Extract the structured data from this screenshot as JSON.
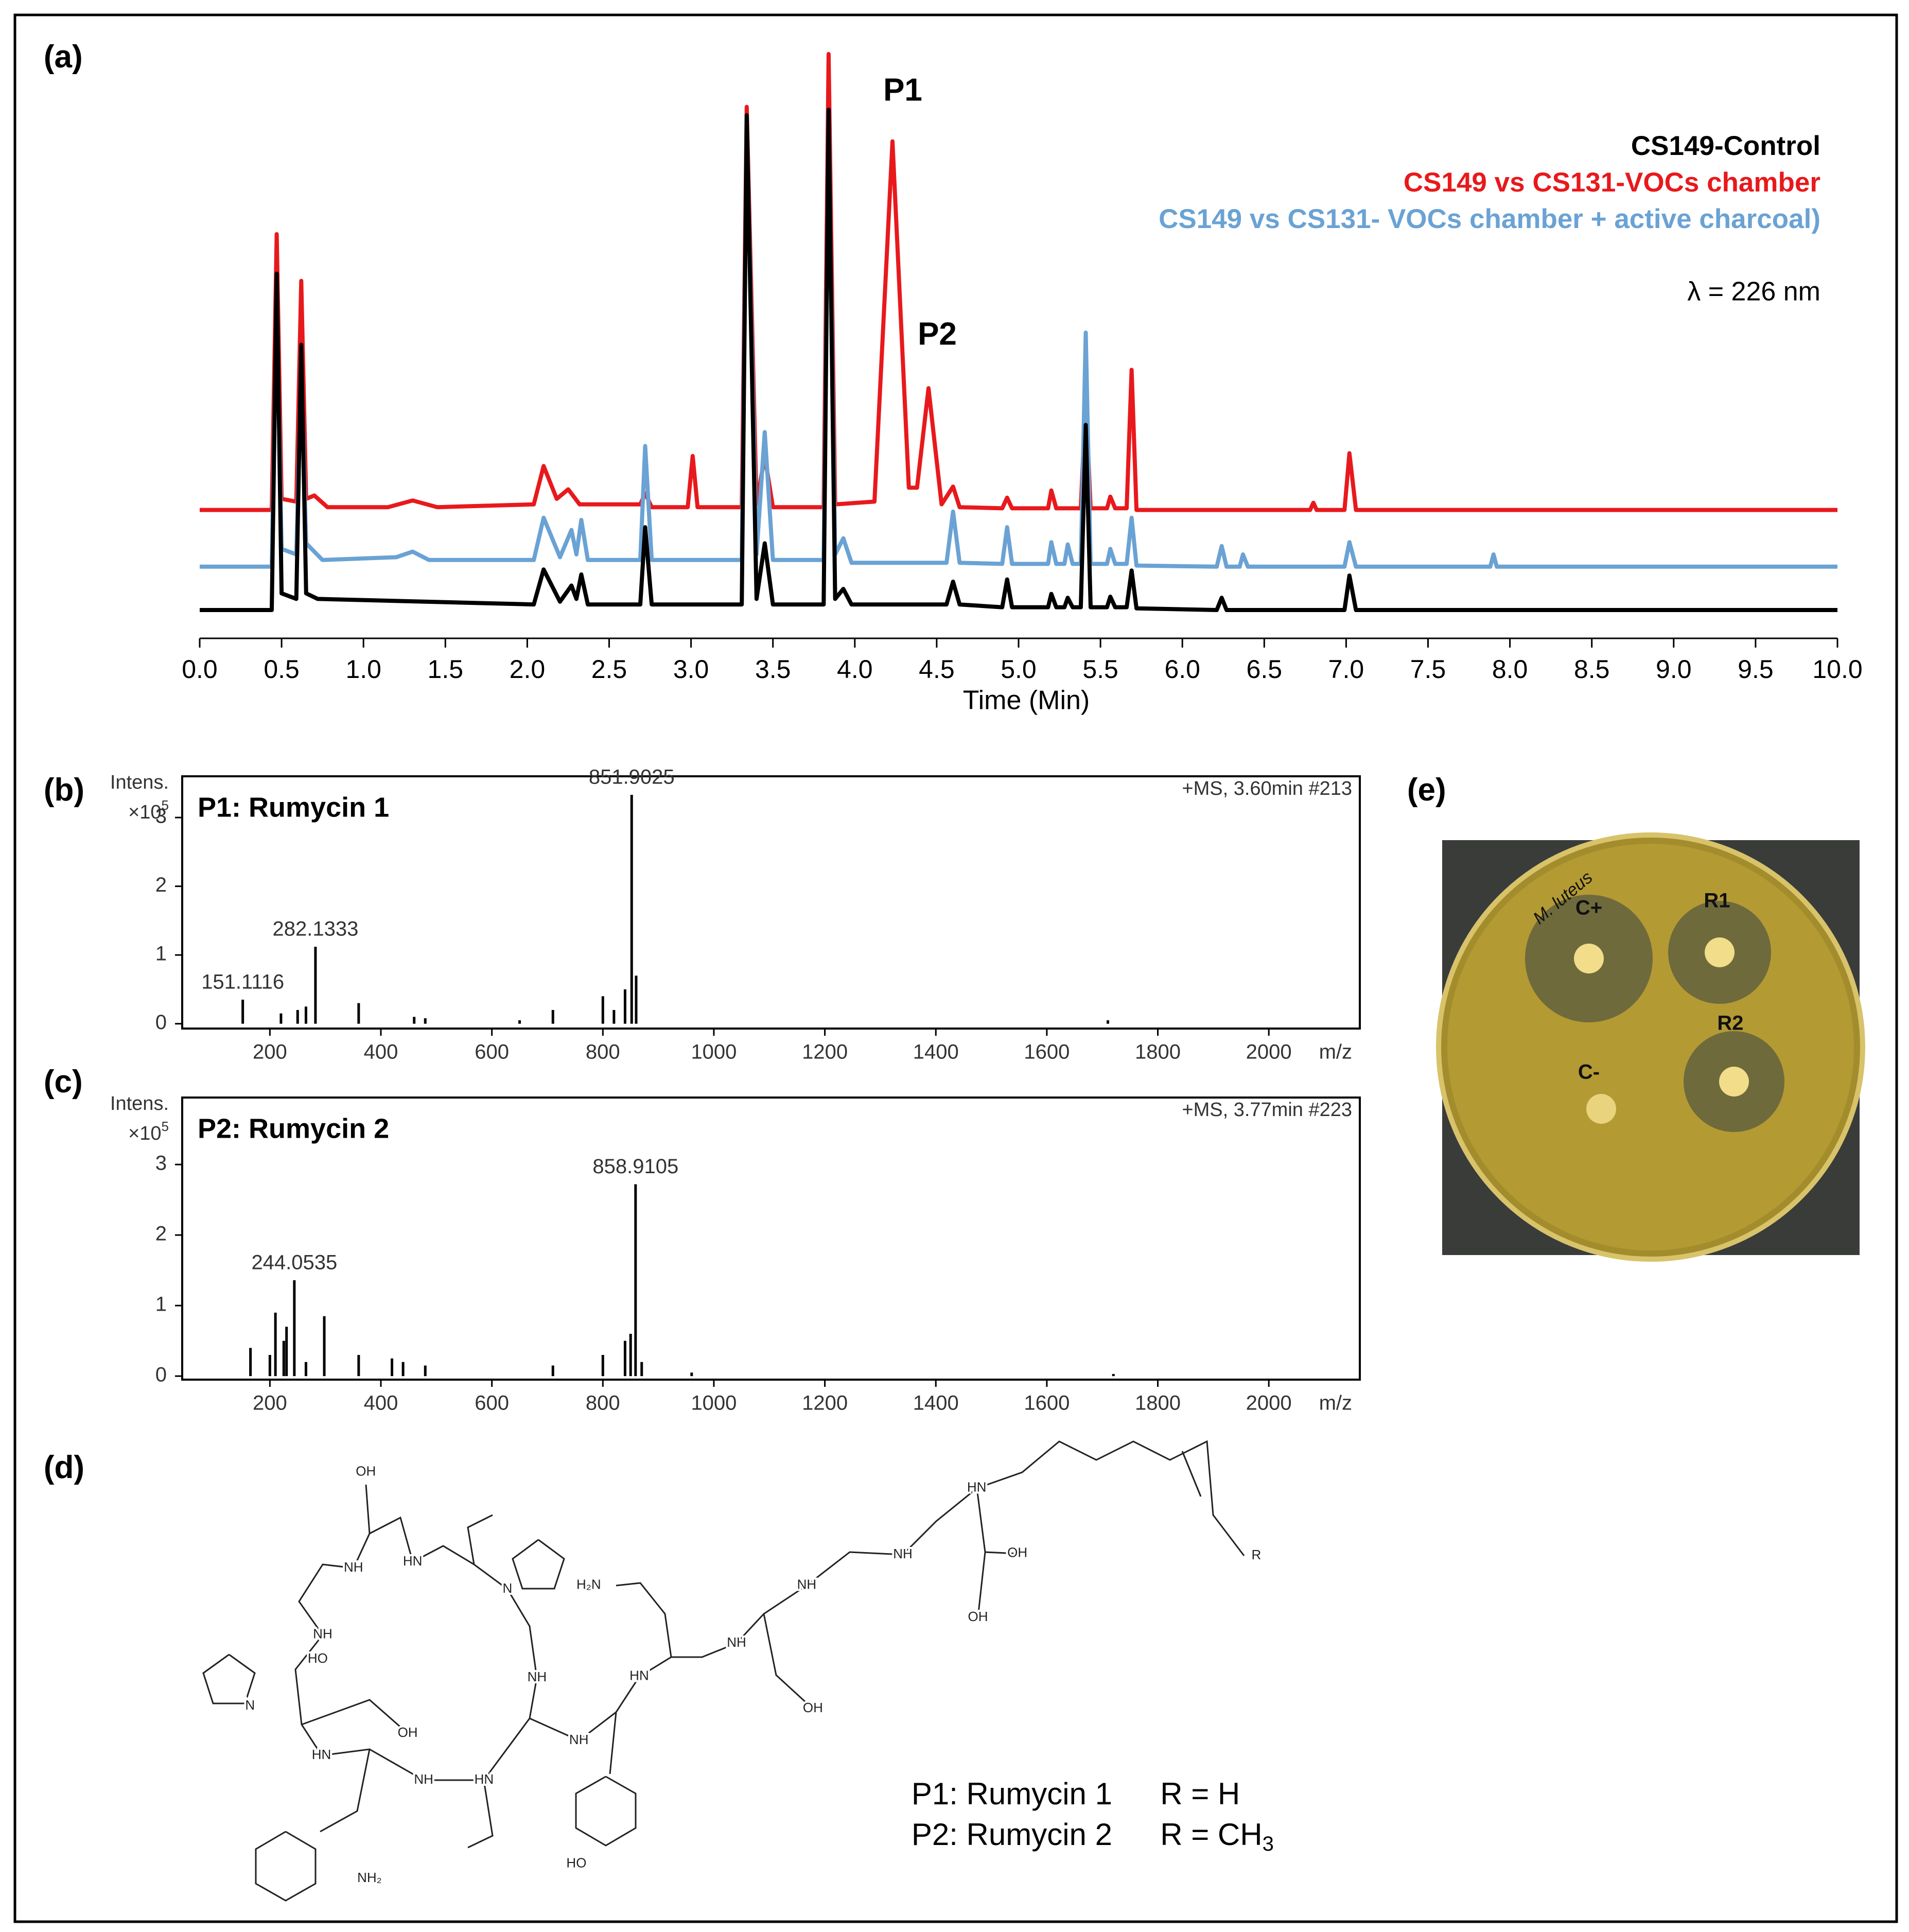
{
  "panels": [
    "(a)",
    "(b)",
    "(c)",
    "(d)",
    "(e)"
  ],
  "chart_data": [
    {
      "type": "line",
      "x_label": "Time (Min)",
      "legend": "upper right",
      "xlim": [
        0,
        10
      ],
      "ylim": [
        0,
        100
      ],
      "xticks": [
        {
          "value": 0,
          "label": "0.0"
        },
        0.5,
        {
          "value": 1,
          "label": "1.0"
        },
        1.5,
        {
          "value": 2,
          "label": "2.0"
        },
        2.5,
        {
          "value": 3,
          "label": "3.0"
        },
        3.5,
        {
          "value": 4,
          "label": "4.0"
        },
        4.5,
        {
          "value": 5,
          "label": "5.0"
        },
        5.5,
        {
          "value": 6,
          "label": "6.0"
        },
        6.5,
        {
          "value": 7,
          "label": "7.0"
        },
        7.5,
        {
          "value": 8,
          "label": "8.0"
        },
        8.5,
        {
          "value": 9,
          "label": "9.0"
        },
        9.5,
        {
          "value": 10,
          "label": "10.0"
        }
      ],
      "annotations": [
        "λ = 226 nm",
        "P1",
        "P2"
      ],
      "series": [
        {
          "name": "CS149-Control",
          "color": "#000000",
          "x": [
            0,
            0.44,
            0.47,
            0.5,
            0.59,
            0.62,
            0.65,
            0.72,
            2.04,
            2.1,
            2.2,
            2.27,
            2.3,
            2.33,
            2.37,
            2.69,
            2.72,
            2.76,
            3.31,
            3.34,
            3.4,
            3.45,
            3.5,
            3.81,
            3.84,
            3.88,
            3.93,
            3.98,
            4.56,
            4.6,
            4.64,
            4.9,
            4.93,
            4.96,
            5.18,
            5.2,
            5.23,
            5.28,
            5.3,
            5.33,
            5.38,
            5.41,
            5.44,
            5.54,
            5.56,
            5.59,
            5.66,
            5.69,
            5.72,
            6.21,
            6.24,
            6.27,
            6.99,
            7.02,
            7.06,
            10
          ],
          "values": [
            0,
            0,
            60.5,
            3,
            2,
            47.7,
            3,
            2,
            1,
            7.3,
            1.5,
            4.4,
            2,
            6.4,
            1,
            1,
            14.9,
            1,
            1,
            89,
            2,
            12,
            1,
            1,
            90,
            2,
            3.8,
            1,
            1,
            5.1,
            1,
            0.5,
            5.5,
            0.5,
            0.5,
            2.9,
            0.5,
            0.5,
            2.2,
            0.5,
            0.5,
            33.3,
            0.5,
            0.5,
            2.4,
            0.5,
            0.5,
            7.1,
            0.3,
            0,
            2.2,
            0,
            0,
            6.2,
            0,
            0
          ]
        },
        {
          "name": "CS149 vs CS131-VOCs chamber",
          "color": "#e8191c",
          "x": [
            0,
            0.44,
            0.47,
            0.5,
            0.59,
            0.62,
            0.65,
            0.7,
            0.78,
            1.15,
            1.3,
            1.45,
            2.04,
            2.1,
            2.18,
            2.25,
            2.32,
            2.69,
            2.72,
            2.76,
            2.98,
            3.01,
            3.04,
            3.31,
            3.34,
            3.4,
            3.45,
            3.5,
            3.81,
            3.84,
            3.88,
            4.12,
            4.23,
            4.33,
            4.38,
            4.45,
            4.53,
            4.6,
            4.64,
            4.9,
            4.93,
            4.96,
            5.18,
            5.2,
            5.23,
            5.38,
            5.41,
            5.44,
            5.54,
            5.56,
            5.59,
            5.66,
            5.69,
            5.72,
            6.78,
            6.8,
            6.82,
            6.99,
            7.02,
            7.06,
            10
          ],
          "values": [
            18,
            18,
            67.6,
            20,
            19.5,
            59.2,
            20,
            20.6,
            18.5,
            18.5,
            19.7,
            18.5,
            19,
            25.9,
            20,
            21.7,
            19,
            19,
            21,
            18.5,
            18.5,
            27.7,
            18.5,
            18.5,
            90.5,
            19,
            27.7,
            18.5,
            18.5,
            100,
            19,
            19.5,
            84.3,
            22,
            22,
            39.9,
            19,
            22.2,
            18.5,
            18.3,
            20.2,
            18.3,
            18.3,
            21.5,
            18.3,
            18.3,
            38.1,
            18.3,
            18.3,
            20.4,
            18.3,
            18.3,
            43.2,
            18,
            18,
            19.3,
            18,
            18,
            28.2,
            18,
            18
          ]
        },
        {
          "name": "CS149 vs CS131- VOCs chamber + active charcoal)",
          "color": "#6aa2d4",
          "x": [
            0,
            0.44,
            0.47,
            0.5,
            0.59,
            0.62,
            0.65,
            0.75,
            1.2,
            1.3,
            1.4,
            2.04,
            2.1,
            2.2,
            2.27,
            2.3,
            2.33,
            2.37,
            2.69,
            2.72,
            2.76,
            3.31,
            3.34,
            3.4,
            3.45,
            3.5,
            3.81,
            3.84,
            3.88,
            3.93,
            3.98,
            4.56,
            4.6,
            4.64,
            4.9,
            4.93,
            4.96,
            5.18,
            5.2,
            5.23,
            5.28,
            5.3,
            5.33,
            5.38,
            5.41,
            5.44,
            5.54,
            5.56,
            5.59,
            5.66,
            5.69,
            5.72,
            6.21,
            6.24,
            6.27,
            6.35,
            6.37,
            6.4,
            6.99,
            7.02,
            7.06,
            7.88,
            7.9,
            7.92,
            10
          ],
          "values": [
            7.8,
            7.8,
            58,
            11,
            10,
            45,
            12,
            9,
            9.5,
            10.5,
            9,
            9,
            16.6,
            9.5,
            14.4,
            10,
            16.2,
            9,
            9,
            29.5,
            9,
            9,
            88.7,
            10,
            32,
            9,
            9,
            90,
            10,
            12.9,
            8.5,
            8.5,
            17.7,
            8.5,
            8.3,
            14.9,
            8.3,
            8.3,
            12.2,
            8.3,
            8.3,
            11.8,
            8.3,
            8.3,
            49.9,
            8.3,
            8.3,
            11,
            8.3,
            8.3,
            16.6,
            8,
            7.8,
            11.5,
            7.8,
            7.8,
            10,
            7.8,
            7.8,
            12.2,
            7.8,
            7.8,
            10,
            7.8,
            7.8
          ]
        }
      ]
    },
    {
      "type": "spectrum",
      "title": "P1: Rumycin 1",
      "annotation": "+MS, 3.60min #213",
      "y_label": "Intens.",
      "y_scale": {
        "base": "×10",
        "exponent": "5"
      },
      "x_label": "m/z",
      "color": "#000000",
      "xlim": [
        42,
        2164
      ],
      "ylim": [
        -0.07,
        3.6
      ],
      "xticks": [
        200,
        400,
        600,
        800,
        1000,
        1200,
        1400,
        1600,
        1800,
        2000
      ],
      "yticks": [
        0,
        1,
        2,
        3
      ],
      "x": [
        151.1116,
        220,
        250,
        265,
        282.1333,
        360,
        460,
        480,
        650,
        710,
        800,
        820,
        840,
        851.9025,
        860,
        1710
      ],
      "values": [
        0.35,
        0.15,
        0.2,
        0.25,
        1.12,
        0.3,
        0.1,
        0.08,
        0.05,
        0.2,
        0.4,
        0.2,
        0.5,
        3.33,
        0.7,
        0.05
      ],
      "value_labels": [
        "151.1116",
        null,
        null,
        null,
        "282.1333",
        null,
        null,
        null,
        null,
        null,
        null,
        null,
        null,
        "851.9025",
        null,
        null
      ]
    },
    {
      "type": "spectrum",
      "title": "P2: Rumycin 2",
      "annotation": "+MS, 3.77min #223",
      "y_label": "Intens.",
      "y_scale": {
        "base": "×10",
        "exponent": "5"
      },
      "x_label": "m/z",
      "color": "#000000",
      "xlim": [
        42,
        2164
      ],
      "ylim": [
        -0.05,
        3.95
      ],
      "xticks": [
        200,
        400,
        600,
        800,
        1000,
        1200,
        1400,
        1600,
        1800,
        2000
      ],
      "yticks": [
        0,
        1,
        2,
        3
      ],
      "x": [
        165,
        200,
        210,
        225,
        230,
        244.0535,
        265,
        298,
        360,
        420,
        440,
        480,
        710,
        800,
        840,
        850,
        858.9105,
        870,
        960,
        1720
      ],
      "values": [
        0.4,
        0.3,
        0.9,
        0.5,
        0.7,
        1.36,
        0.2,
        0.85,
        0.3,
        0.25,
        0.2,
        0.15,
        0.15,
        0.3,
        0.5,
        0.6,
        2.72,
        0.2,
        0.05,
        0.03
      ],
      "value_labels": [
        null,
        null,
        null,
        null,
        null,
        "244.0535",
        null,
        null,
        null,
        null,
        null,
        null,
        null,
        null,
        null,
        null,
        "858.9105",
        null,
        null,
        null
      ]
    }
  ],
  "structure": {
    "atoms": [
      "OH",
      "NH",
      "HN",
      "N",
      "NH",
      "HO",
      "N",
      "OH",
      "HN",
      "NH",
      "HN",
      "NH",
      "NH",
      "HN",
      "H₂N",
      "NH",
      "NH",
      "NH",
      "HN",
      "OH",
      "OH",
      "OH",
      "R",
      "NH₂",
      "HO"
    ],
    "legend": [
      {
        "compound": "P1: Rumycin 1",
        "r": "R = H"
      },
      {
        "compound": "P2: Rumycin 2",
        "r": "R = CH",
        "subscript": "3"
      }
    ]
  },
  "plate": {
    "labels": [
      "C+",
      "R1",
      "R2",
      "C-"
    ],
    "handwriting": "M. luteus"
  }
}
